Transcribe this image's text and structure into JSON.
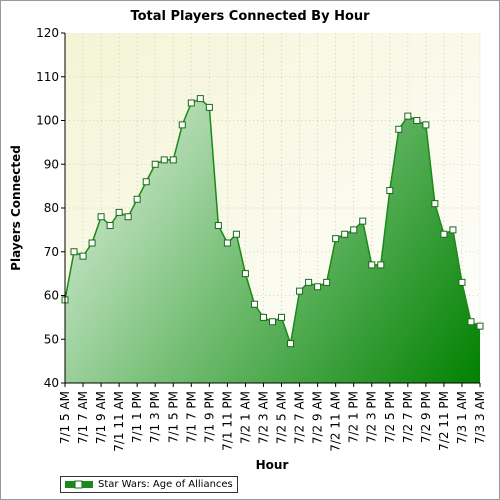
{
  "chart_data": {
    "type": "area",
    "title": "Total Players Connected By Hour",
    "xlabel": "Hour",
    "ylabel": "Players Connected",
    "ylim": [
      40,
      120
    ],
    "yticks": [
      40,
      50,
      60,
      70,
      80,
      90,
      100,
      110,
      120
    ],
    "grid": true,
    "legend_position": "bottom-left",
    "x": [
      "7/1 5 AM",
      "7/1 6 AM",
      "7/1 7 AM",
      "7/1 8 AM",
      "7/1 9 AM",
      "7/1 10 AM",
      "7/1 11 AM",
      "7/1 12 PM",
      "7/1 1 PM",
      "7/1 2 PM",
      "7/1 3 PM",
      "7/1 4 PM",
      "7/1 5 PM",
      "7/1 6 PM",
      "7/1 7 PM",
      "7/1 8 PM",
      "7/1 9 PM",
      "7/1 10 PM",
      "7/1 11 PM",
      "7/2 12 AM",
      "7/2 1 AM",
      "7/2 2 AM",
      "7/2 3 AM",
      "7/2 4 AM",
      "7/2 5 AM",
      "7/2 6 AM",
      "7/2 7 AM",
      "7/2 8 AM",
      "7/2 9 AM",
      "7/2 10 AM",
      "7/2 11 AM",
      "7/2 12 PM",
      "7/2 1 PM",
      "7/2 2 PM",
      "7/2 3 PM",
      "7/2 4 PM",
      "7/2 5 PM",
      "7/2 6 PM",
      "7/2 7 PM",
      "7/2 8 PM",
      "7/2 9 PM",
      "7/2 10 PM",
      "7/2 11 PM",
      "7/3 12 AM",
      "7/3 1 AM",
      "7/3 2 AM",
      "7/3 3 AM"
    ],
    "xtick_labels": [
      "7/1 5 AM",
      "7/1 7 AM",
      "7/1 9 AM",
      "7/1 11 AM",
      "7/1 1 PM",
      "7/1 3 PM",
      "7/1 5 PM",
      "7/1 7 PM",
      "7/1 9 PM",
      "7/1 11 PM",
      "7/2 1 AM",
      "7/2 3 AM",
      "7/2 5 AM",
      "7/2 7 AM",
      "7/2 9 AM",
      "7/2 11 AM",
      "7/2 1 PM",
      "7/2 3 PM",
      "7/2 5 PM",
      "7/2 7 PM",
      "7/2 9 PM",
      "7/2 11 PM",
      "7/3 1 AM",
      "7/3 3 AM"
    ],
    "series": [
      {
        "name": "Star Wars: Age of Alliances",
        "color": "#1a8a1a",
        "values": [
          59,
          70,
          69,
          72,
          78,
          76,
          79,
          78,
          82,
          86,
          90,
          91,
          91,
          99,
          104,
          105,
          103,
          76,
          72,
          74,
          65,
          58,
          55,
          54,
          55,
          49,
          61,
          63,
          62,
          63,
          73,
          74,
          75,
          77,
          67,
          67,
          84,
          98,
          101,
          100,
          99,
          81,
          74,
          75,
          63,
          54,
          53
        ]
      }
    ]
  }
}
